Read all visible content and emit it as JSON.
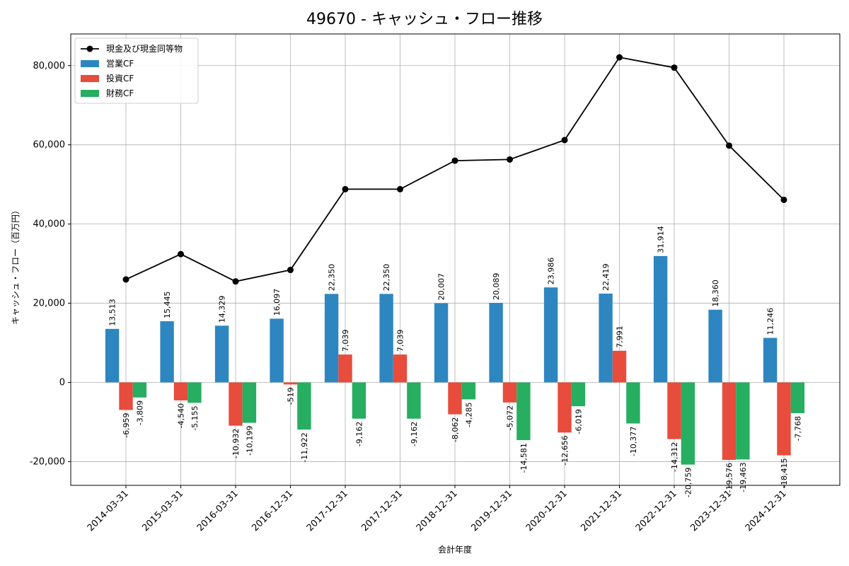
{
  "chart_data": {
    "type": "bar",
    "title": "49670 - キャッシュ・フロー推移",
    "xlabel": "会計年度",
    "ylabel": "キャッシュ・フロー（百万円）",
    "ylim": [
      -26000,
      88000
    ],
    "yticks": [
      -20000,
      0,
      20000,
      40000,
      60000,
      80000
    ],
    "ytick_labels": [
      "-20,000",
      "0",
      "20,000",
      "40,000",
      "60,000",
      "80,000"
    ],
    "grid": true,
    "legend_position": "top-left",
    "categories": [
      "2014-03-31",
      "2015-03-31",
      "2016-03-31",
      "2016-12-31",
      "2017-12-31",
      "2017-12-31",
      "2018-12-31",
      "2019-12-31",
      "2020-12-31",
      "2021-12-31",
      "2022-12-31",
      "2023-12-31",
      "2024-12-31"
    ],
    "series": [
      {
        "name": "営業CF",
        "type": "bar",
        "color": "#2e86c1",
        "values": [
          13513,
          15445,
          14329,
          16097,
          22350,
          22350,
          20007,
          20089,
          23986,
          22419,
          31914,
          18360,
          11246
        ],
        "labels": [
          "13,513",
          "15,445",
          "14,329",
          "16,097",
          "22,350",
          "22,350",
          "20,007",
          "20,089",
          "23,986",
          "22,419",
          "31,914",
          "18,360",
          "11,246"
        ]
      },
      {
        "name": "投資CF",
        "type": "bar",
        "color": "#e74c3c",
        "values": [
          -6959,
          -4540,
          -10932,
          -519,
          7039,
          7039,
          -8062,
          -5072,
          -12656,
          7991,
          -14312,
          -19576,
          -18415
        ],
        "labels": [
          "-6,959",
          "-4,540",
          "-10,932",
          "-519",
          "7,039",
          "7,039",
          "-8,062",
          "-5,072",
          "-12,656",
          "7,991",
          "-14,312",
          "-19,576",
          "-18,415"
        ]
      },
      {
        "name": "財務CF",
        "type": "bar",
        "color": "#27ae60",
        "values": [
          -3809,
          -5155,
          -10199,
          -11922,
          -9162,
          -9162,
          -4285,
          -14581,
          -6019,
          -10377,
          -20759,
          -19463,
          -7768
        ],
        "labels": [
          "-3,809",
          "-5,155",
          "-10,199",
          "-11,922",
          "-9,162",
          "-9,162",
          "-4,285",
          "-14,581",
          "-6,019",
          "-10,377",
          "-20,759",
          "-19,463",
          "-7,768"
        ]
      },
      {
        "name": "現金及び現金同等物",
        "type": "line",
        "color": "#000000",
        "values": [
          26000,
          32400,
          25500,
          28400,
          48800,
          48800,
          56000,
          56300,
          61200,
          82100,
          79500,
          59800,
          46100
        ]
      }
    ]
  }
}
